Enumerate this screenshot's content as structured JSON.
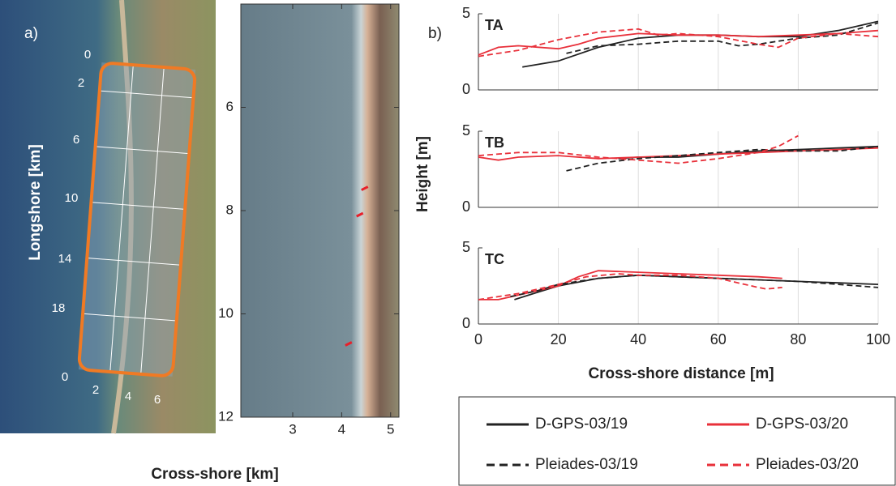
{
  "overview": {
    "label": "a)",
    "ylabel": "Longshore [km]",
    "longshore_ticks": [
      0,
      2,
      6,
      10,
      14,
      18,
      0
    ],
    "crossshore_ticks": [
      2,
      4,
      6
    ]
  },
  "chart_data": [
    {
      "type": "image",
      "xlabel": "Cross-shore [km]",
      "xlim": [
        1.94,
        5.17
      ],
      "xticks": [
        3,
        4,
        5
      ],
      "ylim": [
        4,
        12
      ],
      "yticks": [
        6,
        8,
        10,
        12
      ],
      "inverted_y": true,
      "series": [
        {
          "color": "#e8202a",
          "x": [
            4.47,
            4.37,
            4.14
          ],
          "values": [
            7.57,
            8.08,
            10.58
          ]
        }
      ]
    },
    {
      "type": "line",
      "label": "b)",
      "title": "TA",
      "xlim": [
        0,
        100
      ],
      "xticks": [
        0,
        20,
        40,
        60,
        80,
        100
      ],
      "ylim": [
        0,
        5
      ],
      "yticks": [
        0,
        5
      ],
      "tick_labels": false,
      "grid": true,
      "series": [
        {
          "name": "D-GPS-03/19",
          "color": "#222222",
          "dash": false,
          "x": [
            11,
            20,
            30,
            40,
            50,
            60,
            70,
            80,
            90,
            100
          ],
          "values": [
            1.5,
            1.9,
            2.8,
            3.4,
            3.6,
            3.6,
            3.5,
            3.5,
            3.9,
            4.5
          ]
        },
        {
          "name": "D-GPS-03/20",
          "color": "#e8303a",
          "dash": false,
          "x": [
            0,
            5,
            10,
            20,
            25,
            30,
            40,
            50,
            60,
            70,
            80,
            90,
            100
          ],
          "values": [
            2.3,
            2.8,
            2.9,
            2.7,
            3.0,
            3.4,
            3.7,
            3.6,
            3.6,
            3.5,
            3.6,
            3.7,
            3.9
          ]
        },
        {
          "name": "Pleiades-03/19",
          "color": "#222222",
          "dash": true,
          "x": [
            22,
            30,
            40,
            50,
            60,
            65,
            70,
            80,
            90,
            100
          ],
          "values": [
            2.4,
            2.9,
            3.0,
            3.2,
            3.2,
            2.9,
            3.0,
            3.4,
            3.6,
            4.4
          ]
        },
        {
          "name": "Pleiades-03/20",
          "color": "#e8303a",
          "dash": true,
          "x": [
            0,
            10,
            20,
            30,
            40,
            45,
            50,
            60,
            70,
            75,
            80,
            90,
            100
          ],
          "values": [
            2.2,
            2.6,
            3.3,
            3.8,
            4.0,
            3.6,
            3.7,
            3.5,
            3.0,
            2.8,
            3.4,
            3.7,
            3.5
          ]
        }
      ]
    },
    {
      "type": "line",
      "title": "TB",
      "ylabel": "Height [m]",
      "xlim": [
        0,
        100
      ],
      "xticks": [
        0,
        20,
        40,
        60,
        80,
        100
      ],
      "ylim": [
        0,
        5
      ],
      "yticks": [
        0,
        5
      ],
      "tick_labels": false,
      "grid": true,
      "series": [
        {
          "name": "D-GPS-03/19",
          "color": "#222222",
          "dash": false,
          "x": [
            35,
            40,
            50,
            60,
            70,
            80,
            90,
            100
          ],
          "values": [
            3.2,
            3.3,
            3.3,
            3.5,
            3.7,
            3.8,
            3.9,
            4.0
          ]
        },
        {
          "name": "D-GPS-03/20",
          "color": "#e8303a",
          "dash": false,
          "x": [
            0,
            5,
            10,
            20,
            30,
            40,
            50,
            60,
            70,
            80,
            90,
            100
          ],
          "values": [
            3.3,
            3.1,
            3.3,
            3.4,
            3.2,
            3.3,
            3.4,
            3.5,
            3.6,
            3.7,
            3.8,
            3.9
          ]
        },
        {
          "name": "Pleiades-03/19",
          "color": "#222222",
          "dash": true,
          "x": [
            22,
            30,
            40,
            50,
            60,
            70,
            80,
            90,
            100
          ],
          "values": [
            2.4,
            2.9,
            3.2,
            3.4,
            3.6,
            3.8,
            3.7,
            3.7,
            4.0
          ]
        },
        {
          "name": "Pleiades-03/20",
          "color": "#e8303a",
          "dash": true,
          "x": [
            0,
            10,
            20,
            30,
            40,
            50,
            60,
            70,
            75,
            80
          ],
          "values": [
            3.4,
            3.6,
            3.6,
            3.3,
            3.1,
            2.9,
            3.2,
            3.6,
            4.0,
            4.7
          ]
        }
      ]
    },
    {
      "type": "line",
      "title": "TC",
      "xlabel": "Cross-shore distance [m]",
      "xlim": [
        0,
        100
      ],
      "xticks": [
        0,
        20,
        40,
        60,
        80,
        100
      ],
      "ylim": [
        0,
        5
      ],
      "yticks": [
        0,
        5
      ],
      "tick_labels": true,
      "grid": true,
      "series": [
        {
          "name": "D-GPS-03/19",
          "color": "#222222",
          "dash": false,
          "x": [
            9,
            15,
            20,
            30,
            40,
            50,
            60,
            70,
            80,
            90,
            100
          ],
          "values": [
            1.6,
            2.1,
            2.5,
            3.0,
            3.2,
            3.1,
            3.0,
            2.9,
            2.8,
            2.7,
            2.6
          ]
        },
        {
          "name": "D-GPS-03/20",
          "color": "#e8303a",
          "dash": false,
          "x": [
            0,
            5,
            10,
            20,
            25,
            30,
            40,
            50,
            60,
            70,
            76
          ],
          "values": [
            1.6,
            1.6,
            1.9,
            2.5,
            3.1,
            3.5,
            3.4,
            3.3,
            3.2,
            3.1,
            3.0
          ]
        },
        {
          "name": "Pleiades-03/19",
          "color": "#222222",
          "dash": true,
          "x": [
            8,
            15,
            20,
            30,
            40,
            50,
            60,
            70,
            80,
            90,
            100
          ],
          "values": [
            1.8,
            2.2,
            2.6,
            3.0,
            3.2,
            3.1,
            3.0,
            2.9,
            2.8,
            2.6,
            2.4
          ]
        },
        {
          "name": "Pleiades-03/20",
          "color": "#e8303a",
          "dash": true,
          "x": [
            0,
            10,
            20,
            27,
            35,
            40,
            50,
            60,
            70,
            72,
            76
          ],
          "values": [
            1.6,
            2.0,
            2.6,
            3.1,
            3.3,
            3.2,
            3.2,
            3.0,
            2.4,
            2.3,
            2.4
          ]
        }
      ]
    }
  ]
}
